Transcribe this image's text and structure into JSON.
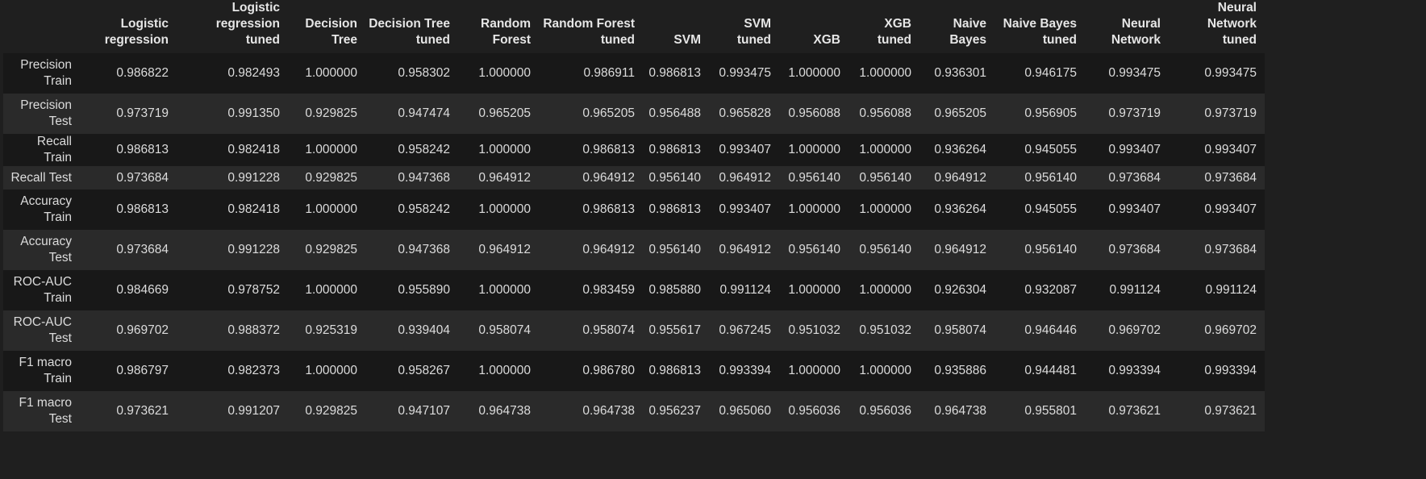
{
  "table": {
    "columns": [
      "Logistic regression",
      "Logistic regression tuned",
      "Decision Tree",
      "Decision Tree tuned",
      "Random Forest",
      "Random Forest tuned",
      "SVM",
      "SVM tuned",
      "XGB",
      "XGB tuned",
      "Naive Bayes",
      "Naive Bayes tuned",
      "Neural Network",
      "Neural Network tuned"
    ],
    "rows": [
      {
        "label": "Precision Train",
        "values": [
          "0.986822",
          "0.982493",
          "1.000000",
          "0.958302",
          "1.000000",
          "0.986911",
          "0.986813",
          "0.993475",
          "1.000000",
          "1.000000",
          "0.936301",
          "0.946175",
          "0.993475",
          "0.993475"
        ]
      },
      {
        "label": "Precision Test",
        "values": [
          "0.973719",
          "0.991350",
          "0.929825",
          "0.947474",
          "0.965205",
          "0.965205",
          "0.956488",
          "0.965828",
          "0.956088",
          "0.956088",
          "0.965205",
          "0.956905",
          "0.973719",
          "0.973719"
        ]
      },
      {
        "label": "Recall Train",
        "values": [
          "0.986813",
          "0.982418",
          "1.000000",
          "0.958242",
          "1.000000",
          "0.986813",
          "0.986813",
          "0.993407",
          "1.000000",
          "1.000000",
          "0.936264",
          "0.945055",
          "0.993407",
          "0.993407"
        ]
      },
      {
        "label": "Recall Test",
        "values": [
          "0.973684",
          "0.991228",
          "0.929825",
          "0.947368",
          "0.964912",
          "0.964912",
          "0.956140",
          "0.964912",
          "0.956140",
          "0.956140",
          "0.964912",
          "0.956140",
          "0.973684",
          "0.973684"
        ]
      },
      {
        "label": "Accuracy Train",
        "values": [
          "0.986813",
          "0.982418",
          "1.000000",
          "0.958242",
          "1.000000",
          "0.986813",
          "0.986813",
          "0.993407",
          "1.000000",
          "1.000000",
          "0.936264",
          "0.945055",
          "0.993407",
          "0.993407"
        ]
      },
      {
        "label": "Accuracy Test",
        "values": [
          "0.973684",
          "0.991228",
          "0.929825",
          "0.947368",
          "0.964912",
          "0.964912",
          "0.956140",
          "0.964912",
          "0.956140",
          "0.956140",
          "0.964912",
          "0.956140",
          "0.973684",
          "0.973684"
        ]
      },
      {
        "label": "ROC-AUC Train",
        "values": [
          "0.984669",
          "0.978752",
          "1.000000",
          "0.955890",
          "1.000000",
          "0.983459",
          "0.985880",
          "0.991124",
          "1.000000",
          "1.000000",
          "0.926304",
          "0.932087",
          "0.991124",
          "0.991124"
        ]
      },
      {
        "label": "ROC-AUC Test",
        "values": [
          "0.969702",
          "0.988372",
          "0.925319",
          "0.939404",
          "0.958074",
          "0.958074",
          "0.955617",
          "0.967245",
          "0.951032",
          "0.951032",
          "0.958074",
          "0.946446",
          "0.969702",
          "0.969702"
        ]
      },
      {
        "label": "F1 macro Train",
        "values": [
          "0.986797",
          "0.982373",
          "1.000000",
          "0.958267",
          "1.000000",
          "0.986780",
          "0.986813",
          "0.993394",
          "1.000000",
          "1.000000",
          "0.935886",
          "0.944481",
          "0.993394",
          "0.993394"
        ]
      },
      {
        "label": "F1 macro Test",
        "values": [
          "0.973621",
          "0.991207",
          "0.929825",
          "0.947107",
          "0.964738",
          "0.964738",
          "0.956237",
          "0.965060",
          "0.956036",
          "0.956036",
          "0.964738",
          "0.955801",
          "0.973621",
          "0.973621"
        ]
      }
    ]
  }
}
